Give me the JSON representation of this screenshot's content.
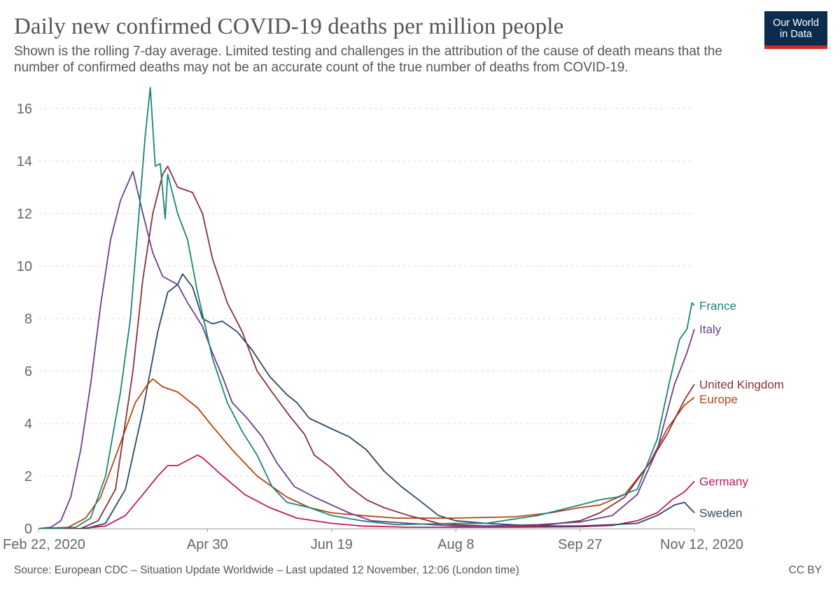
{
  "header": {
    "title": "Daily new confirmed COVID-19 deaths per million people",
    "subtitle": "Shown is the rolling 7-day average. Limited testing and challenges in the attribution of the cause of death means that the number of confirmed deaths may not be an accurate count of the true number of deaths from COVID-19."
  },
  "logo": {
    "line1": "Our World",
    "line2": "in Data",
    "bg_color": "#0b2c4f",
    "stripe_color": "#d42b21"
  },
  "footer": {
    "source": "Source: European CDC – Situation Update Worldwide – Last updated 12 November, 12:06 (London time)",
    "license": "CC BY"
  },
  "chart_data": {
    "type": "line",
    "title": "Daily new confirmed COVID-19 deaths per million people",
    "xlabel": "",
    "ylabel": "",
    "x_range": [
      "2020-02-22",
      "2020-11-12"
    ],
    "ylim": [
      0,
      16.8
    ],
    "x_ticks": [
      {
        "date": "2020-02-22",
        "label": "Feb 22, 2020"
      },
      {
        "date": "2020-04-30",
        "label": "Apr 30"
      },
      {
        "date": "2020-06-19",
        "label": "Jun 19"
      },
      {
        "date": "2020-08-08",
        "label": "Aug 8"
      },
      {
        "date": "2020-09-27",
        "label": "Sep 27"
      },
      {
        "date": "2020-11-12",
        "label": "Nov 12, 2020"
      }
    ],
    "y_ticks": [
      0,
      2,
      4,
      6,
      8,
      10,
      12,
      14,
      16
    ],
    "grid": "horizontal dashed",
    "legend": "line labels at right end",
    "series": [
      {
        "name": "Germany",
        "color": "#c2185b",
        "points": [
          [
            "2020-02-22",
            0
          ],
          [
            "2020-03-10",
            0
          ],
          [
            "2020-03-20",
            0.1
          ],
          [
            "2020-03-28",
            0.5
          ],
          [
            "2020-04-04",
            1.3
          ],
          [
            "2020-04-10",
            2.0
          ],
          [
            "2020-04-14",
            2.4
          ],
          [
            "2020-04-18",
            2.4
          ],
          [
            "2020-04-22",
            2.6
          ],
          [
            "2020-04-26",
            2.8
          ],
          [
            "2020-04-28",
            2.7
          ],
          [
            "2020-05-05",
            2.1
          ],
          [
            "2020-05-15",
            1.3
          ],
          [
            "2020-05-25",
            0.8
          ],
          [
            "2020-06-05",
            0.4
          ],
          [
            "2020-06-19",
            0.2
          ],
          [
            "2020-07-01",
            0.1
          ],
          [
            "2020-07-20",
            0.05
          ],
          [
            "2020-08-08",
            0.05
          ],
          [
            "2020-09-01",
            0.05
          ],
          [
            "2020-09-27",
            0.07
          ],
          [
            "2020-10-10",
            0.12
          ],
          [
            "2020-10-20",
            0.3
          ],
          [
            "2020-10-28",
            0.6
          ],
          [
            "2020-11-03",
            1.1
          ],
          [
            "2020-11-08",
            1.4
          ],
          [
            "2020-11-12",
            1.8
          ]
        ]
      },
      {
        "name": "Sweden",
        "color": "#2c4864",
        "points": [
          [
            "2020-02-22",
            0
          ],
          [
            "2020-03-12",
            0
          ],
          [
            "2020-03-20",
            0.2
          ],
          [
            "2020-03-28",
            1.5
          ],
          [
            "2020-04-04",
            4.5
          ],
          [
            "2020-04-10",
            7.5
          ],
          [
            "2020-04-14",
            9.0
          ],
          [
            "2020-04-18",
            9.3
          ],
          [
            "2020-04-20",
            9.7
          ],
          [
            "2020-04-24",
            9.2
          ],
          [
            "2020-04-28",
            8.0
          ],
          [
            "2020-05-02",
            7.8
          ],
          [
            "2020-05-06",
            7.9
          ],
          [
            "2020-05-12",
            7.5
          ],
          [
            "2020-05-18",
            6.8
          ],
          [
            "2020-05-25",
            5.8
          ],
          [
            "2020-06-01",
            5.1
          ],
          [
            "2020-06-05",
            4.8
          ],
          [
            "2020-06-10",
            4.2
          ],
          [
            "2020-06-19",
            3.8
          ],
          [
            "2020-06-26",
            3.5
          ],
          [
            "2020-07-03",
            3.0
          ],
          [
            "2020-07-10",
            2.2
          ],
          [
            "2020-07-17",
            1.6
          ],
          [
            "2020-07-24",
            1.1
          ],
          [
            "2020-08-01",
            0.5
          ],
          [
            "2020-08-08",
            0.3
          ],
          [
            "2020-08-20",
            0.2
          ],
          [
            "2020-09-10",
            0.1
          ],
          [
            "2020-09-27",
            0.1
          ],
          [
            "2020-10-10",
            0.15
          ],
          [
            "2020-10-20",
            0.2
          ],
          [
            "2020-10-28",
            0.5
          ],
          [
            "2020-11-04",
            0.9
          ],
          [
            "2020-11-08",
            1.0
          ],
          [
            "2020-11-10",
            0.8
          ],
          [
            "2020-11-12",
            0.6
          ]
        ]
      },
      {
        "name": "Europe",
        "color": "#b8420f",
        "points": [
          [
            "2020-02-22",
            0
          ],
          [
            "2020-03-05",
            0.05
          ],
          [
            "2020-03-12",
            0.4
          ],
          [
            "2020-03-18",
            1.2
          ],
          [
            "2020-03-25",
            3.0
          ],
          [
            "2020-04-01",
            4.8
          ],
          [
            "2020-04-06",
            5.5
          ],
          [
            "2020-04-08",
            5.7
          ],
          [
            "2020-04-12",
            5.4
          ],
          [
            "2020-04-18",
            5.2
          ],
          [
            "2020-04-26",
            4.6
          ],
          [
            "2020-05-02",
            3.9
          ],
          [
            "2020-05-10",
            3.0
          ],
          [
            "2020-05-20",
            2.0
          ],
          [
            "2020-06-01",
            1.2
          ],
          [
            "2020-06-10",
            0.8
          ],
          [
            "2020-06-19",
            0.6
          ],
          [
            "2020-07-01",
            0.5
          ],
          [
            "2020-07-15",
            0.4
          ],
          [
            "2020-08-08",
            0.4
          ],
          [
            "2020-09-01",
            0.45
          ],
          [
            "2020-09-15",
            0.6
          ],
          [
            "2020-09-27",
            0.8
          ],
          [
            "2020-10-05",
            0.9
          ],
          [
            "2020-10-15",
            1.3
          ],
          [
            "2020-10-25",
            2.5
          ],
          [
            "2020-11-01",
            3.8
          ],
          [
            "2020-11-08",
            4.7
          ],
          [
            "2020-11-12",
            5.0
          ]
        ]
      },
      {
        "name": "United Kingdom",
        "color": "#883039",
        "points": [
          [
            "2020-02-22",
            0
          ],
          [
            "2020-03-10",
            0
          ],
          [
            "2020-03-17",
            0.3
          ],
          [
            "2020-03-24",
            1.5
          ],
          [
            "2020-03-31",
            6.0
          ],
          [
            "2020-04-04",
            9.5
          ],
          [
            "2020-04-08",
            12.0
          ],
          [
            "2020-04-12",
            13.5
          ],
          [
            "2020-04-14",
            13.8
          ],
          [
            "2020-04-18",
            13.0
          ],
          [
            "2020-04-24",
            12.8
          ],
          [
            "2020-04-28",
            12.0
          ],
          [
            "2020-05-02",
            10.3
          ],
          [
            "2020-05-08",
            8.6
          ],
          [
            "2020-05-14",
            7.5
          ],
          [
            "2020-05-20",
            6.0
          ],
          [
            "2020-05-26",
            5.2
          ],
          [
            "2020-06-02",
            4.3
          ],
          [
            "2020-06-08",
            3.6
          ],
          [
            "2020-06-12",
            2.8
          ],
          [
            "2020-06-19",
            2.3
          ],
          [
            "2020-06-26",
            1.6
          ],
          [
            "2020-07-03",
            1.1
          ],
          [
            "2020-07-10",
            0.8
          ],
          [
            "2020-07-20",
            0.5
          ],
          [
            "2020-08-01",
            0.2
          ],
          [
            "2020-08-08",
            0.15
          ],
          [
            "2020-08-20",
            0.1
          ],
          [
            "2020-09-10",
            0.1
          ],
          [
            "2020-09-27",
            0.3
          ],
          [
            "2020-10-05",
            0.6
          ],
          [
            "2020-10-15",
            1.2
          ],
          [
            "2020-10-25",
            2.5
          ],
          [
            "2020-11-01",
            3.6
          ],
          [
            "2020-11-08",
            4.9
          ],
          [
            "2020-11-12",
            5.5
          ]
        ]
      },
      {
        "name": "Italy",
        "color": "#6b3d8f",
        "points": [
          [
            "2020-02-22",
            0
          ],
          [
            "2020-02-27",
            0.05
          ],
          [
            "2020-03-02",
            0.3
          ],
          [
            "2020-03-06",
            1.2
          ],
          [
            "2020-03-10",
            3.0
          ],
          [
            "2020-03-14",
            5.5
          ],
          [
            "2020-03-18",
            8.5
          ],
          [
            "2020-03-22",
            11.0
          ],
          [
            "2020-03-26",
            12.5
          ],
          [
            "2020-03-31",
            13.6
          ],
          [
            "2020-04-04",
            12.0
          ],
          [
            "2020-04-08",
            10.5
          ],
          [
            "2020-04-12",
            9.6
          ],
          [
            "2020-04-18",
            9.3
          ],
          [
            "2020-04-22",
            8.6
          ],
          [
            "2020-04-28",
            7.7
          ],
          [
            "2020-05-02",
            6.7
          ],
          [
            "2020-05-06",
            5.8
          ],
          [
            "2020-05-10",
            4.8
          ],
          [
            "2020-05-16",
            4.2
          ],
          [
            "2020-05-22",
            3.5
          ],
          [
            "2020-05-28",
            2.5
          ],
          [
            "2020-06-04",
            1.6
          ],
          [
            "2020-06-12",
            1.2
          ],
          [
            "2020-06-19",
            0.9
          ],
          [
            "2020-06-26",
            0.6
          ],
          [
            "2020-07-05",
            0.3
          ],
          [
            "2020-07-20",
            0.2
          ],
          [
            "2020-08-08",
            0.1
          ],
          [
            "2020-08-20",
            0.1
          ],
          [
            "2020-09-10",
            0.15
          ],
          [
            "2020-09-27",
            0.25
          ],
          [
            "2020-10-10",
            0.5
          ],
          [
            "2020-10-20",
            1.3
          ],
          [
            "2020-10-28",
            3.0
          ],
          [
            "2020-11-04",
            5.5
          ],
          [
            "2020-11-09",
            6.7
          ],
          [
            "2020-11-12",
            7.6
          ]
        ]
      },
      {
        "name": "France",
        "color": "#18857a",
        "points": [
          [
            "2020-02-22",
            0
          ],
          [
            "2020-03-08",
            0.05
          ],
          [
            "2020-03-14",
            0.4
          ],
          [
            "2020-03-20",
            2.0
          ],
          [
            "2020-03-26",
            5.2
          ],
          [
            "2020-03-30",
            8.0
          ],
          [
            "2020-04-02",
            11.5
          ],
          [
            "2020-04-05",
            15.0
          ],
          [
            "2020-04-07",
            16.8
          ],
          [
            "2020-04-09",
            13.8
          ],
          [
            "2020-04-11",
            13.9
          ],
          [
            "2020-04-13",
            11.8
          ],
          [
            "2020-04-14",
            13.5
          ],
          [
            "2020-04-18",
            12.0
          ],
          [
            "2020-04-22",
            11.0
          ],
          [
            "2020-04-26",
            9.0
          ],
          [
            "2020-05-02",
            6.5
          ],
          [
            "2020-05-08",
            4.8
          ],
          [
            "2020-05-14",
            3.7
          ],
          [
            "2020-05-20",
            2.8
          ],
          [
            "2020-05-26",
            1.6
          ],
          [
            "2020-06-01",
            1.0
          ],
          [
            "2020-06-10",
            0.8
          ],
          [
            "2020-06-19",
            0.5
          ],
          [
            "2020-07-01",
            0.3
          ],
          [
            "2020-07-15",
            0.15
          ],
          [
            "2020-08-08",
            0.2
          ],
          [
            "2020-08-20",
            0.2
          ],
          [
            "2020-09-10",
            0.5
          ],
          [
            "2020-09-27",
            0.9
          ],
          [
            "2020-10-05",
            1.1
          ],
          [
            "2020-10-12",
            1.2
          ],
          [
            "2020-10-20",
            1.5
          ],
          [
            "2020-10-28",
            3.4
          ],
          [
            "2020-11-02",
            5.6
          ],
          [
            "2020-11-06",
            7.2
          ],
          [
            "2020-11-09",
            7.6
          ],
          [
            "2020-11-11",
            8.6
          ],
          [
            "2020-11-12",
            8.5
          ]
        ]
      }
    ]
  }
}
